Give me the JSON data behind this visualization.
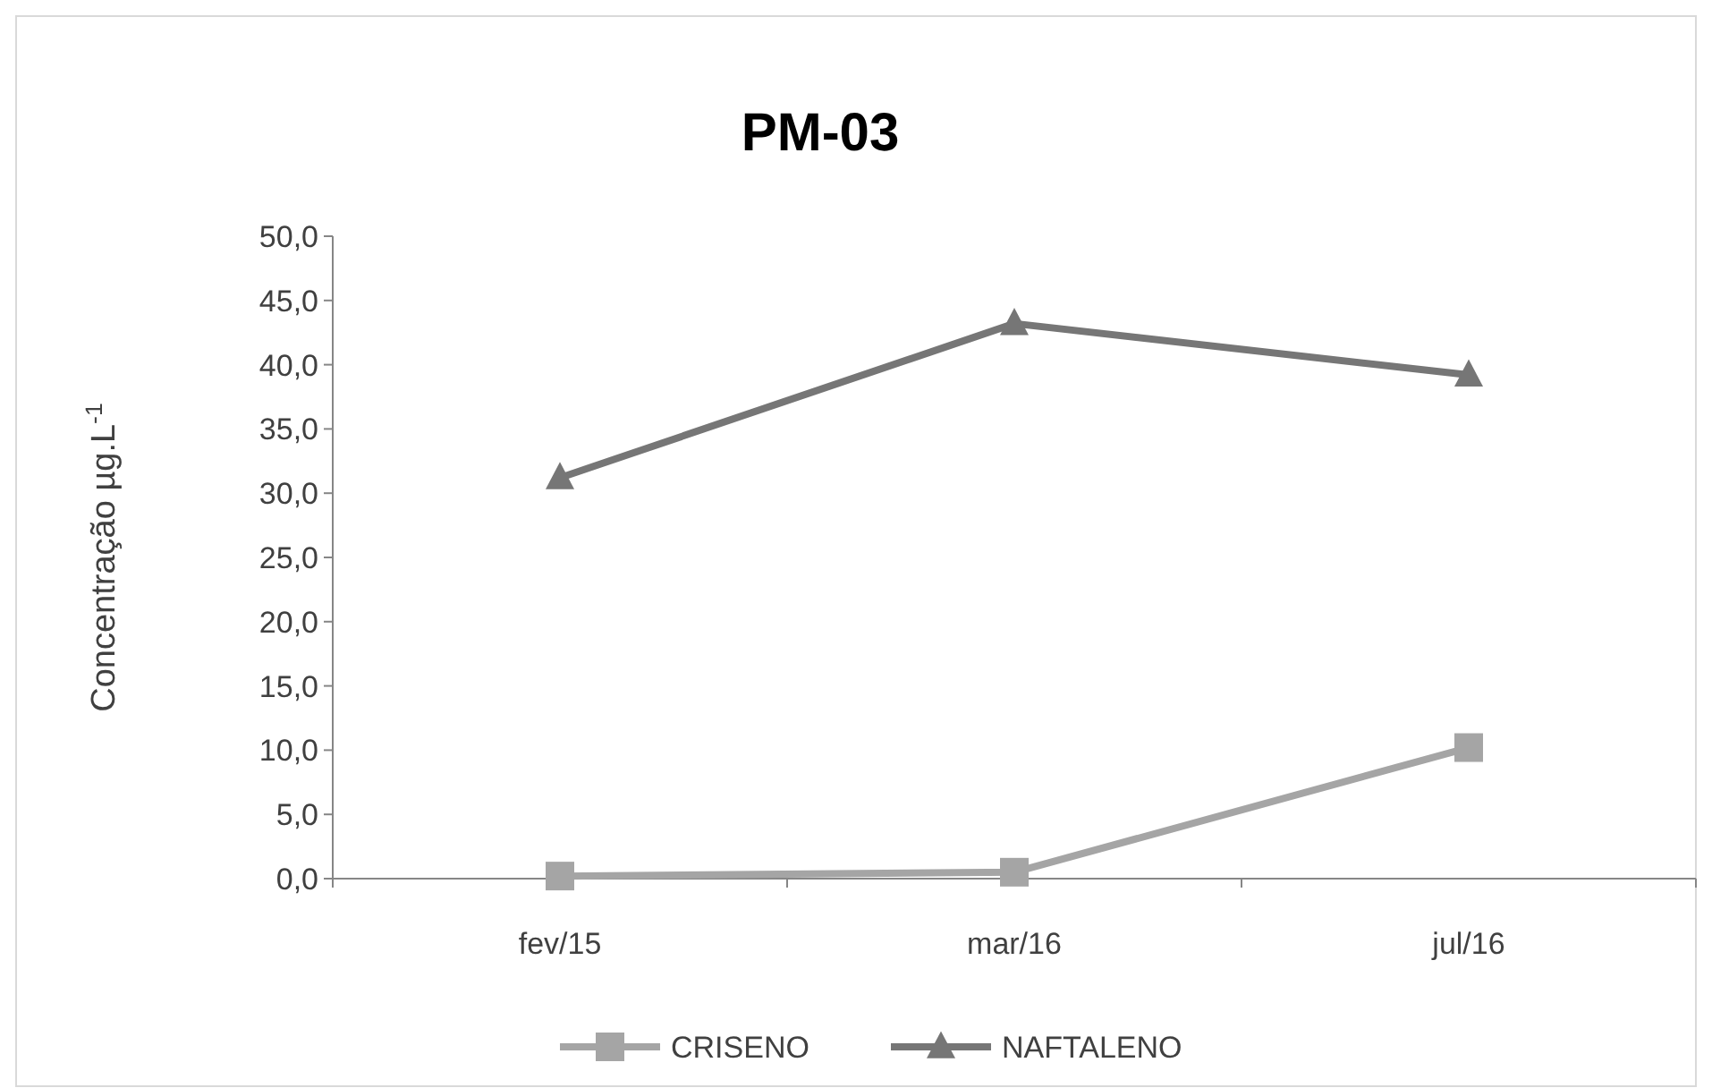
{
  "chart_data": {
    "type": "line",
    "title": "PM-03",
    "ylabel": "Concentração µg.L$^{-1}$",
    "categories": [
      "fev/15",
      "mar/16",
      "jul/16"
    ],
    "series": [
      {
        "name": "CRISENO",
        "color": "#a5a5a5",
        "marker": "square",
        "values": [
          0.2,
          0.5,
          10.2
        ]
      },
      {
        "name": "NAFTALENO",
        "color": "#767676",
        "marker": "triangle",
        "values": [
          31.2,
          43.2,
          39.2
        ]
      }
    ],
    "ylim": [
      0,
      50
    ],
    "yticks": [
      {
        "value": 0,
        "label": "0,0"
      },
      {
        "value": 5,
        "label": "5,0"
      },
      {
        "value": 10,
        "label": "10,0"
      },
      {
        "value": 15,
        "label": "15,0"
      },
      {
        "value": 20,
        "label": "20,0"
      },
      {
        "value": 25,
        "label": "25,0"
      },
      {
        "value": 30,
        "label": "30,0"
      },
      {
        "value": 35,
        "label": "35,0"
      },
      {
        "value": 40,
        "label": "40,0"
      },
      {
        "value": 45,
        "label": "45,0"
      },
      {
        "value": 50,
        "label": "50,0"
      }
    ],
    "grid": false,
    "legend": "bottom",
    "line_style": "solid"
  }
}
